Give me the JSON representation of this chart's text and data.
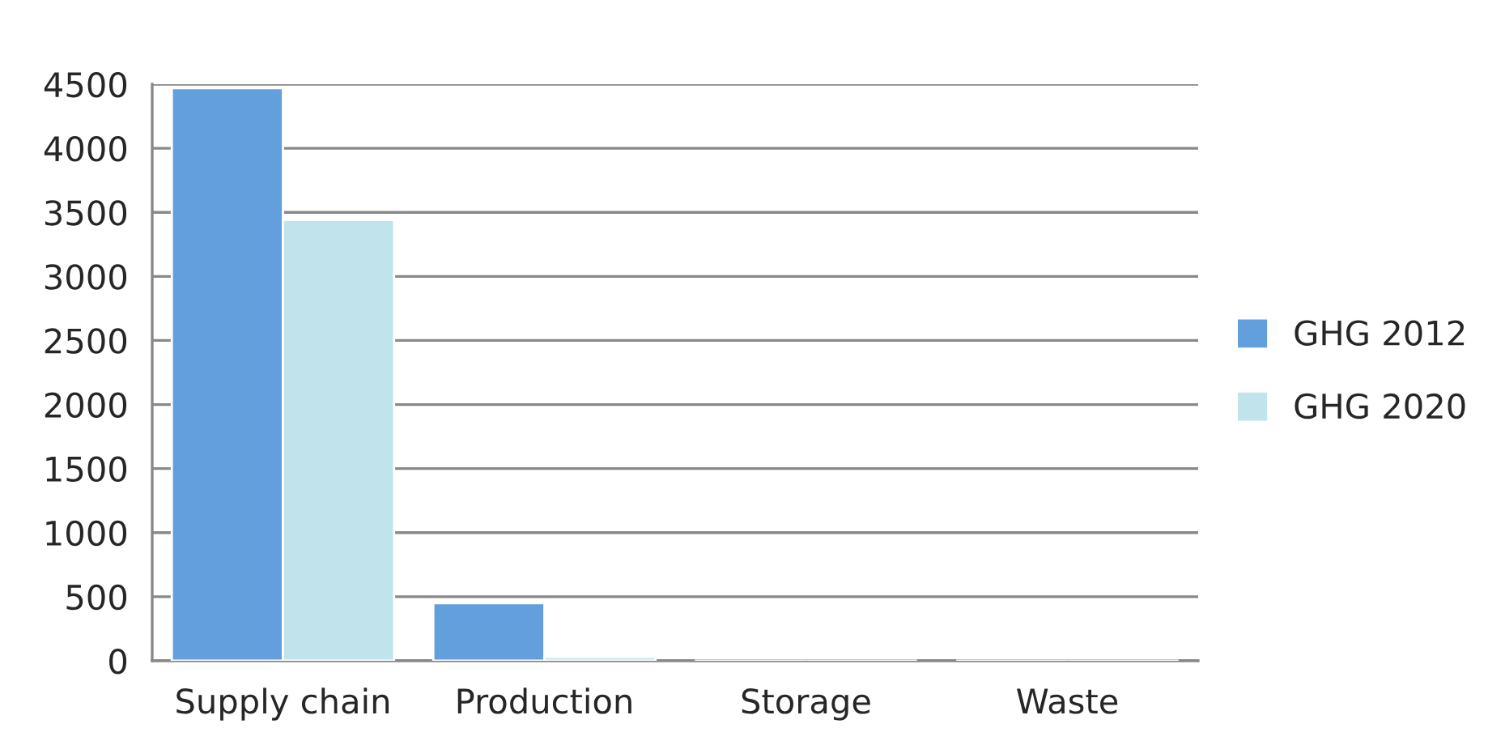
{
  "chart_data": {
    "type": "bar",
    "categories": [
      "Supply chain",
      "Production",
      "Storage",
      "Waste"
    ],
    "series": [
      {
        "name": "GHG 2012",
        "color": "#629fdc",
        "values": [
          4470,
          450,
          0,
          0
        ]
      },
      {
        "name": "GHG 2020",
        "color": "#c0e3ec",
        "values": [
          3440,
          30,
          0,
          0
        ]
      }
    ],
    "ylim": [
      0,
      4500
    ],
    "yticks": [
      0,
      500,
      1000,
      1500,
      2000,
      2500,
      3000,
      3500,
      4000,
      4500
    ],
    "grid": "y",
    "legend": "right"
  }
}
